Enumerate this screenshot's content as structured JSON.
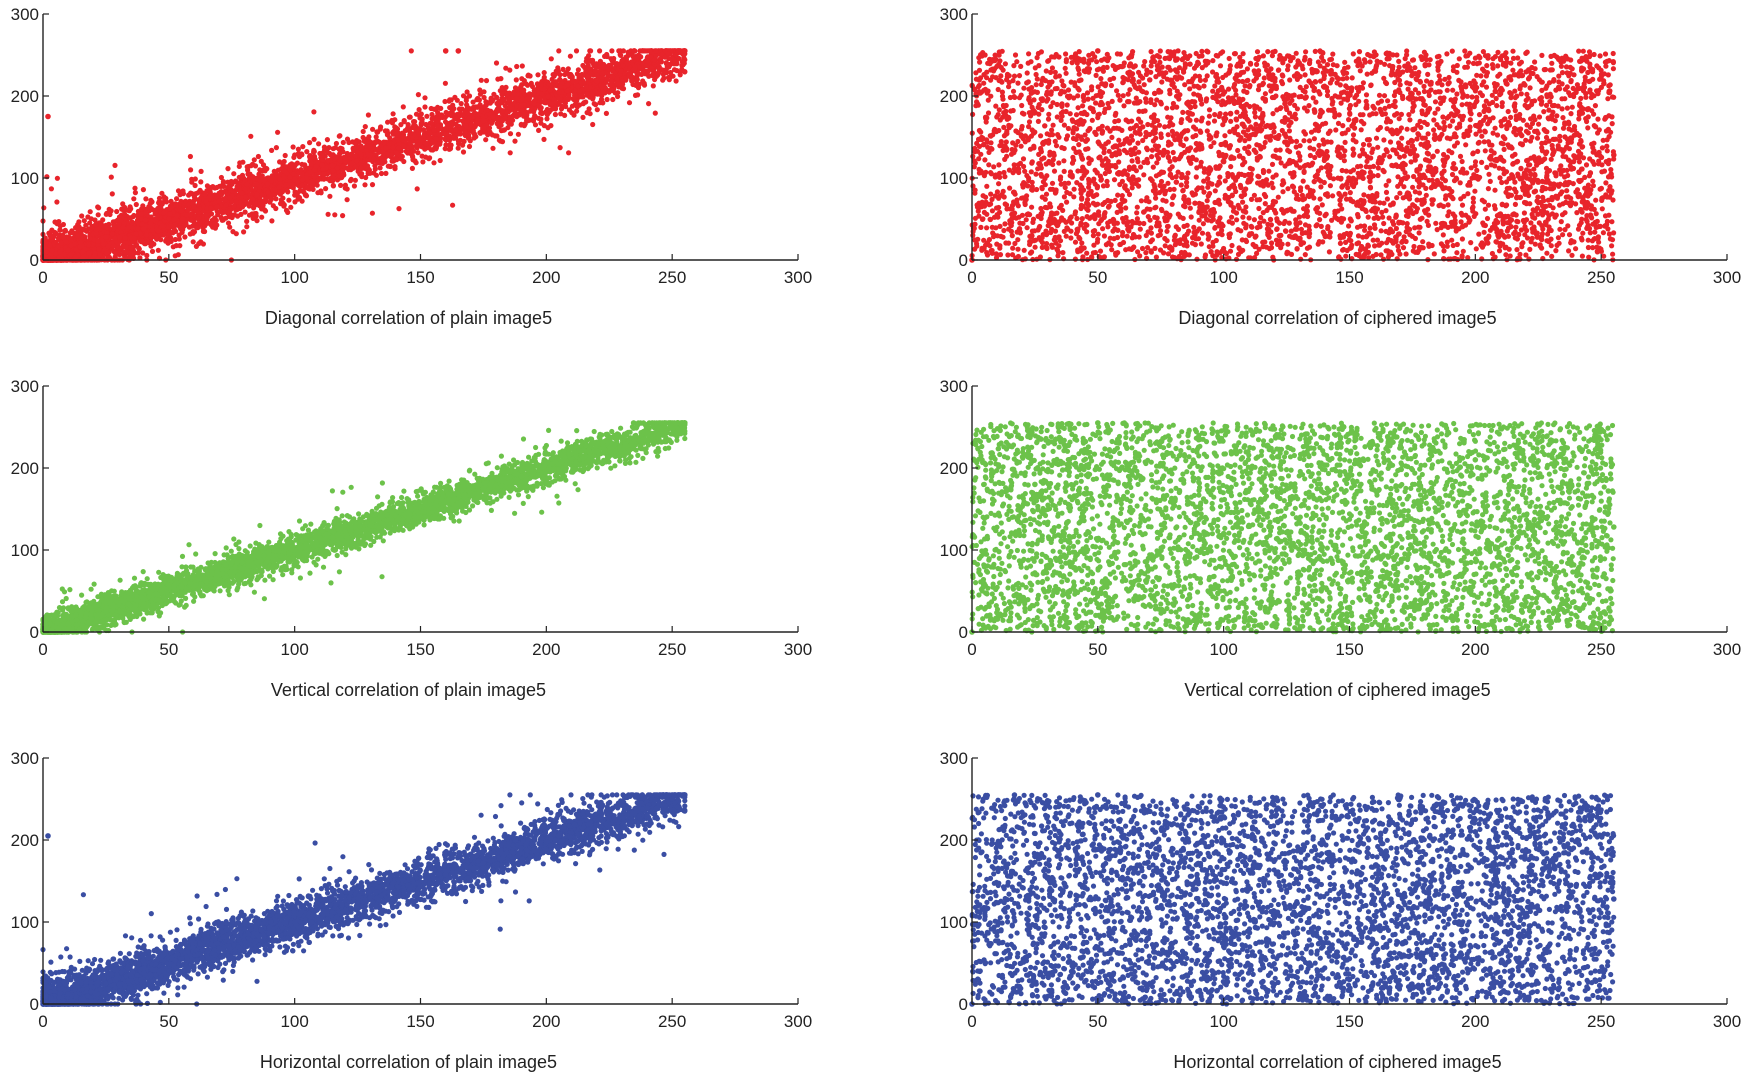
{
  "figure": {
    "colors": {
      "red": "#e8242b",
      "green": "#6cc24a",
      "blue": "#3a4ea3"
    }
  },
  "chart_data": [
    {
      "type": "scatter",
      "xlabel": "Diagonal correlation of plain image5",
      "ylabel": "",
      "xlim": [
        0,
        300
      ],
      "ylim": [
        0,
        300
      ],
      "xticks": [
        0,
        50,
        100,
        150,
        200,
        250,
        300
      ],
      "yticks": [
        0,
        100,
        200,
        300
      ],
      "grid": false,
      "color": "#e8242b",
      "pattern": "correlated",
      "slope": 1.0,
      "spread": 14,
      "points_approx": 4500,
      "data_extent": {
        "x": [
          0,
          255
        ],
        "y": [
          0,
          255
        ]
      },
      "x": [
        0,
        10,
        25,
        40,
        55,
        70,
        85,
        100,
        115,
        130,
        145,
        160,
        175,
        190,
        205,
        220,
        235,
        250,
        255,
        160,
        165,
        2
      ],
      "y": [
        5,
        12,
        28,
        38,
        60,
        72,
        80,
        98,
        115,
        128,
        148,
        160,
        170,
        188,
        205,
        218,
        232,
        245,
        255,
        255,
        255,
        175
      ]
    },
    {
      "type": "scatter",
      "xlabel": "Diagonal correlation of ciphered image5",
      "ylabel": "",
      "xlim": [
        0,
        300
      ],
      "ylim": [
        0,
        300
      ],
      "xticks": [
        0,
        50,
        100,
        150,
        200,
        250,
        300
      ],
      "yticks": [
        0,
        100,
        200,
        300
      ],
      "grid": false,
      "color": "#e8242b",
      "pattern": "uniform",
      "points_approx": 4500,
      "data_extent": {
        "x": [
          0,
          255
        ],
        "y": [
          0,
          255
        ]
      },
      "x": [
        0,
        50,
        100,
        150,
        200,
        255,
        25,
        125,
        225
      ],
      "y": [
        0,
        255,
        120,
        30,
        210,
        128,
        180,
        60,
        95
      ]
    },
    {
      "type": "scatter",
      "xlabel": "Vertical correlation of plain image5",
      "ylabel": "",
      "xlim": [
        0,
        300
      ],
      "ylim": [
        0,
        300
      ],
      "xticks": [
        0,
        50,
        100,
        150,
        200,
        250,
        300
      ],
      "yticks": [
        0,
        100,
        200,
        300
      ],
      "grid": false,
      "color": "#6cc24a",
      "pattern": "correlated",
      "slope": 1.0,
      "spread": 9,
      "points_approx": 4500,
      "data_extent": {
        "x": [
          0,
          255
        ],
        "y": [
          0,
          255
        ]
      },
      "x": [
        0,
        10,
        25,
        40,
        55,
        70,
        85,
        100,
        115,
        130,
        145,
        160,
        175,
        190,
        205,
        220,
        235,
        250,
        255
      ],
      "y": [
        3,
        10,
        25,
        40,
        55,
        70,
        85,
        100,
        115,
        130,
        145,
        160,
        175,
        190,
        205,
        220,
        235,
        248,
        255
      ]
    },
    {
      "type": "scatter",
      "xlabel": "Vertical correlation of ciphered image5",
      "ylabel": "",
      "xlim": [
        0,
        300
      ],
      "ylim": [
        0,
        300
      ],
      "xticks": [
        0,
        50,
        100,
        150,
        200,
        250,
        300
      ],
      "yticks": [
        0,
        100,
        200,
        300
      ],
      "grid": false,
      "color": "#6cc24a",
      "pattern": "uniform",
      "points_approx": 4500,
      "data_extent": {
        "x": [
          0,
          255
        ],
        "y": [
          0,
          255
        ]
      },
      "x": [
        0,
        50,
        100,
        150,
        200,
        255,
        25,
        125,
        225
      ],
      "y": [
        0,
        255,
        120,
        30,
        210,
        128,
        180,
        60,
        95
      ]
    },
    {
      "type": "scatter",
      "xlabel": "Horizontal correlation of plain image5",
      "ylabel": "",
      "xlim": [
        0,
        300
      ],
      "ylim": [
        0,
        300
      ],
      "xticks": [
        0,
        50,
        100,
        150,
        200,
        250,
        300
      ],
      "yticks": [
        0,
        100,
        200,
        300
      ],
      "grid": false,
      "color": "#3a4ea3",
      "pattern": "correlated",
      "slope": 1.0,
      "spread": 13,
      "points_approx": 4500,
      "data_extent": {
        "x": [
          0,
          255
        ],
        "y": [
          0,
          255
        ]
      },
      "x": [
        0,
        10,
        25,
        40,
        55,
        70,
        85,
        100,
        115,
        130,
        145,
        160,
        175,
        190,
        205,
        220,
        235,
        250,
        255,
        2
      ],
      "y": [
        3,
        12,
        25,
        38,
        55,
        68,
        85,
        100,
        112,
        130,
        145,
        158,
        172,
        190,
        205,
        218,
        232,
        250,
        255,
        205
      ]
    },
    {
      "type": "scatter",
      "xlabel": "Horizontal correlation of ciphered image5",
      "ylabel": "",
      "xlim": [
        0,
        300
      ],
      "ylim": [
        0,
        300
      ],
      "xticks": [
        0,
        50,
        100,
        150,
        200,
        250,
        300
      ],
      "yticks": [
        0,
        100,
        200,
        300
      ],
      "grid": false,
      "color": "#3a4ea3",
      "pattern": "uniform",
      "points_approx": 4500,
      "data_extent": {
        "x": [
          0,
          255
        ],
        "y": [
          0,
          255
        ]
      },
      "x": [
        0,
        50,
        100,
        150,
        200,
        255,
        25,
        125,
        225
      ],
      "y": [
        0,
        255,
        120,
        30,
        210,
        128,
        180,
        60,
        95
      ]
    }
  ]
}
